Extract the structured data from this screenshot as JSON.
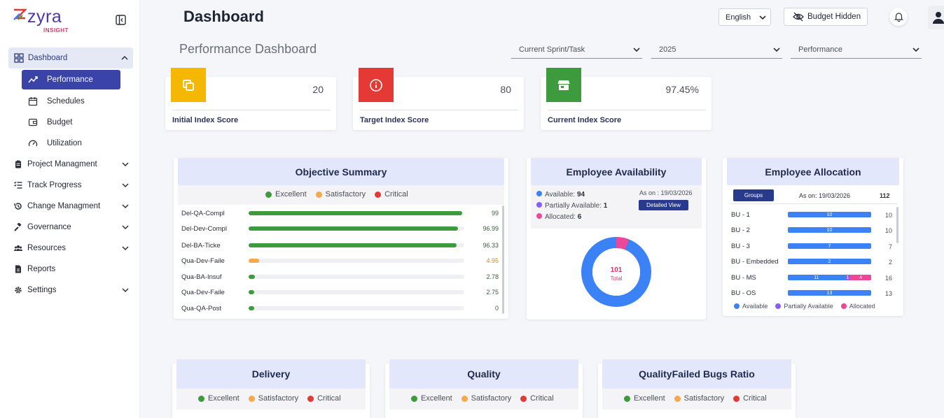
{
  "app": {
    "logo_word": "zyra",
    "logo_tag": "INSIGHT"
  },
  "sidebar": {
    "dashboard_label": "Dashboard",
    "sub_items": [
      {
        "label": "Performance",
        "icon": "trend-icon"
      },
      {
        "label": "Schedules",
        "icon": "calendar-icon"
      },
      {
        "label": "Budget",
        "icon": "wallet-icon"
      },
      {
        "label": "Utilization",
        "icon": "gauge-icon"
      }
    ],
    "items": [
      {
        "label": "Project Managment",
        "icon": "clipboard-icon"
      },
      {
        "label": "Track Progress",
        "icon": "list-check-icon"
      },
      {
        "label": "Change Managment",
        "icon": "history-icon"
      },
      {
        "label": "Governance",
        "icon": "gavel-icon"
      },
      {
        "label": "Resources",
        "icon": "people-icon"
      },
      {
        "label": "Reports",
        "icon": "document-icon"
      },
      {
        "label": "Settings",
        "icon": "gear-icon"
      }
    ]
  },
  "header": {
    "title": "Dashboard",
    "language": "English",
    "budget_button": "Budget Hidden"
  },
  "performance": {
    "title": "Performance Dashboard",
    "filters": [
      "Current Sprint/Task",
      "2025",
      "Performance"
    ]
  },
  "kpis": [
    {
      "label": "Initial Index Score",
      "value": "20",
      "color": "#f5b800",
      "icon": "copy-icon"
    },
    {
      "label": "Target Index Score",
      "value": "80",
      "color": "#e53935",
      "icon": "info-icon"
    },
    {
      "label": "Current Index Score",
      "value": "97.45%",
      "color": "#3d9a3d",
      "icon": "store-icon"
    }
  ],
  "legend": {
    "excellent": "Excellent",
    "satisfactory": "Satisfactory",
    "critical": "Critical"
  },
  "colors": {
    "excellent": "#3d9a3d",
    "satisfactory": "#f6a94b",
    "critical": "#e53935",
    "available": "#3b82f6",
    "partial": "#8b5cf6",
    "allocated": "#ec4899"
  },
  "objective": {
    "title": "Objective Summary",
    "rows": [
      {
        "label": "Del-QA-Compl",
        "value": "99",
        "pct": 99,
        "status": "excellent"
      },
      {
        "label": "Del-Dev-Compl",
        "value": "96.99",
        "pct": 96.99,
        "status": "excellent"
      },
      {
        "label": "Del-BA-Ticke",
        "value": "96.33",
        "pct": 96.33,
        "status": "excellent"
      },
      {
        "label": "Qua-Dev-Faile",
        "value": "4.95",
        "pct": 4.95,
        "status": "satisfactory"
      },
      {
        "label": "Qua-BA-Insuf",
        "value": "2.78",
        "pct": 2.78,
        "status": "excellent"
      },
      {
        "label": "Qua-Dev-Faile",
        "value": "2.75",
        "pct": 2.75,
        "status": "excellent"
      },
      {
        "label": "Qua-QA-Post",
        "value": "0",
        "pct": 0,
        "status": "excellent"
      }
    ]
  },
  "availability": {
    "title": "Employee Availability",
    "available_label": "Available:",
    "available": "94",
    "partial_label": "Partially Available:",
    "partial": "1",
    "allocated_label": "Allocated:",
    "allocated": "6",
    "as_on": "As on : 19/03/2026",
    "detail_button": "Detailed View",
    "total": "101",
    "total_label": "Total"
  },
  "allocation": {
    "title": "Employee Allocation",
    "groups_button": "Groups",
    "as_on": "As on: 19/03/2026",
    "total": "112",
    "rows": [
      {
        "label": "BU - 1",
        "available": "10",
        "partial": "",
        "allocated": "",
        "total": "10"
      },
      {
        "label": "BU - 2",
        "available": "10",
        "partial": "",
        "allocated": "",
        "total": "10"
      },
      {
        "label": "BU - 3",
        "available": "7",
        "partial": "",
        "allocated": "",
        "total": "7"
      },
      {
        "label": "BU - Embedded",
        "available": "2",
        "partial": "",
        "allocated": "",
        "total": "2"
      },
      {
        "label": "BU - MS",
        "available": "11",
        "partial": "1",
        "allocated": "4",
        "total": "16"
      },
      {
        "label": "BU - OS",
        "available": "13",
        "partial": "",
        "allocated": "",
        "total": "13"
      }
    ],
    "legend": [
      "Available",
      "Partially Available",
      "Allocated"
    ]
  },
  "bottom_panels": [
    "Delivery",
    "Quality",
    "QualityFailed Bugs Ratio"
  ]
}
